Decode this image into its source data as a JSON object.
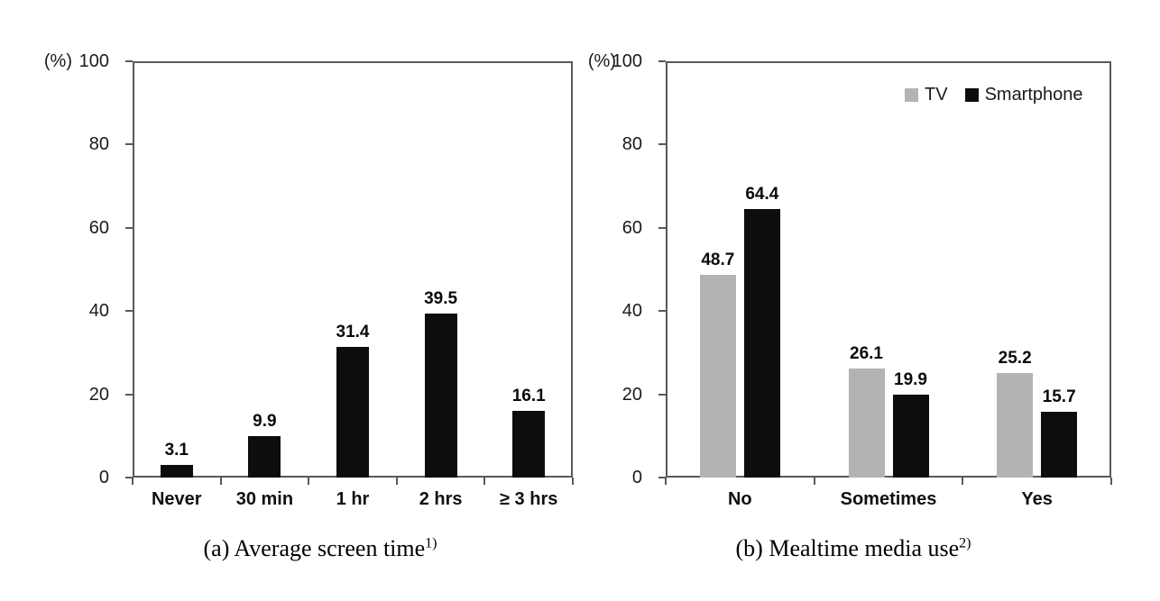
{
  "colors": {
    "bar_black": "#0d0d0d",
    "bar_gray": "#b3b3b3",
    "axis": "#595959",
    "text": "#1a1a1a"
  },
  "chart_data": [
    {
      "type": "bar",
      "title": "(a) Average screen time",
      "unit_label": "(%)",
      "categories": [
        "Never",
        "30 min",
        "1 hr",
        "2 hrs",
        "≥ 3 hrs"
      ],
      "series": [
        {
          "name": "",
          "color_key": "bar_black",
          "values": [
            3.1,
            9.9,
            31.4,
            39.5,
            16.1
          ]
        }
      ],
      "value_labels": [
        "3.1",
        "9.9",
        "31.4",
        "39.5",
        "16.1"
      ],
      "ylim": [
        0,
        100
      ],
      "yticks": [
        0,
        20,
        40,
        60,
        80,
        100
      ],
      "grid": "off",
      "legend": null,
      "caption": {
        "text": "(a) Average screen time",
        "superscript": "1)"
      }
    },
    {
      "type": "bar",
      "title": "(b) Mealtime media use",
      "unit_label": "(%)",
      "categories": [
        "No",
        "Sometimes",
        "Yes"
      ],
      "series": [
        {
          "name": "TV",
          "color_key": "bar_gray",
          "values": [
            48.7,
            26.1,
            25.2
          ]
        },
        {
          "name": "Smartphone",
          "color_key": "bar_black",
          "values": [
            64.4,
            19.9,
            15.7
          ]
        }
      ],
      "ylim": [
        0,
        100
      ],
      "yticks": [
        0,
        20,
        40,
        60,
        80,
        100
      ],
      "grid": "off",
      "legend": {
        "position": "top-right",
        "items": [
          "TV",
          "Smartphone"
        ]
      },
      "caption": {
        "text": "(b) Mealtime media use",
        "superscript": "2)"
      }
    }
  ]
}
